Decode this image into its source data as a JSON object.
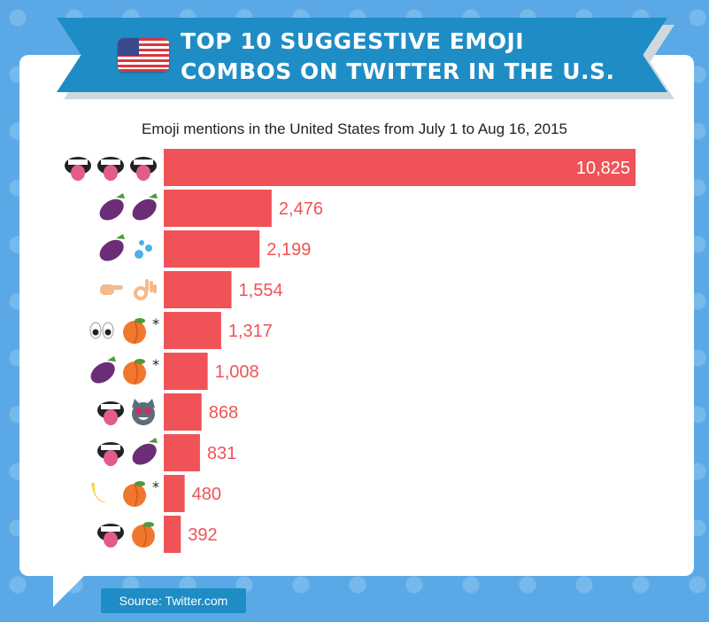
{
  "title_line1": "TOP 10 SUGGESTIVE EMOJI",
  "title_line2": "COMBOS ON TWITTER IN THE U.S.",
  "subtitle": "Emoji mentions in the United States from July 1 to Aug 16, 2015",
  "source": "Source: Twitter.com",
  "colors": {
    "bar": "#ef5358",
    "value_label": "#ef5358",
    "banner": "#1f8dc5",
    "background": "#5aa9e6"
  },
  "chart_data": {
    "type": "bar",
    "orientation": "horizontal",
    "title": "",
    "xlabel": "",
    "ylabel": "",
    "xlim": [
      0,
      10825
    ],
    "grid": false,
    "legend": "none",
    "categories": [
      "tongue tongue tongue",
      "eggplant eggplant",
      "eggplant sweat-droplets",
      "backhand-index-pointing-right ok-hand",
      "eyes peach *",
      "eggplant peach *",
      "tongue heart-eyes-cat",
      "tongue eggplant",
      "banana peach *",
      "tongue peach"
    ],
    "values": [
      10825,
      2476,
      2199,
      1554,
      1317,
      1008,
      868,
      831,
      480,
      392
    ],
    "value_labels": [
      "10,825",
      "2,476",
      "2,199",
      "1,554",
      "1,317",
      "1,008",
      "868",
      "831",
      "480",
      "392"
    ],
    "asterisk": "*"
  }
}
